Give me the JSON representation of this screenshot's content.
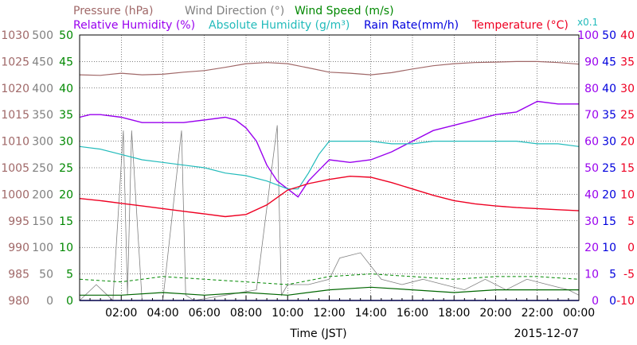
{
  "colors": {
    "pressure": "#a06868",
    "wind_direction": "#808080",
    "wind_speed": "#008800",
    "wind_speed_line": "#006600",
    "humidity": "#9900ee",
    "abs_humidity": "#22bbbb",
    "rain": "#0000dd",
    "temperature": "#ee0022",
    "temperature_dew": "#bb2244",
    "grid": "#000000"
  },
  "legend": {
    "row1": [
      {
        "key": "pressure",
        "text": "Pressure (hPa)"
      },
      {
        "key": "wind_direction",
        "text": "Wind Direction (°)"
      },
      {
        "key": "wind_speed",
        "text": "Wind Speed (m/s)"
      }
    ],
    "row2": [
      {
        "key": "humidity",
        "text": "Relative Humidity (%)"
      },
      {
        "key": "abs_humidity",
        "text": "Absolute Humidity (g/m³)"
      },
      {
        "key": "rain",
        "text": "Rain Rate(mm/h)"
      },
      {
        "key": "temperature",
        "text": "Temperature (°C)"
      }
    ],
    "multiplier": "x0.1"
  },
  "chart_data": {
    "type": "line",
    "xlabel": "Time (JST)",
    "date": "2015-12-07",
    "x_ticks": [
      "02:00",
      "04:00",
      "06:00",
      "08:00",
      "10:00",
      "12:00",
      "14:00",
      "16:00",
      "18:00",
      "20:00",
      "22:00",
      "00:00"
    ],
    "xlim_hours": [
      0,
      24
    ],
    "grid": true,
    "axes": {
      "pressure": {
        "ticks": [
          "1030",
          "1025",
          "1020",
          "1015",
          "1010",
          "1005",
          "1000",
          "995",
          "990",
          "985",
          "980"
        ],
        "range": [
          980,
          1030
        ]
      },
      "wind_direction": {
        "ticks": [
          "500",
          "450",
          "400",
          "350",
          "300",
          "250",
          "200",
          "150",
          "100",
          "50",
          "0"
        ],
        "range": [
          0,
          500
        ]
      },
      "wind_speed": {
        "ticks": [
          "50",
          "45",
          "40",
          "35",
          "30",
          "25",
          "20",
          "15",
          "10",
          "5",
          "0"
        ],
        "range": [
          0,
          50
        ]
      },
      "humidity": {
        "ticks": [
          "100",
          "90",
          "80",
          "70",
          "60",
          "50",
          "40",
          "30",
          "20",
          "10",
          "0"
        ],
        "range": [
          0,
          100
        ]
      },
      "rain": {
        "ticks": [
          "50",
          "45",
          "40",
          "35",
          "30",
          "25",
          "20",
          "15",
          "10",
          "5",
          "0"
        ],
        "range": [
          0,
          50
        ]
      },
      "temperature": {
        "ticks": [
          "40",
          "35",
          "30",
          "25",
          "20",
          "15",
          "10",
          "5",
          "0",
          "-5",
          "-10"
        ],
        "range": [
          -10,
          40
        ]
      }
    },
    "series": [
      {
        "key": "pressure",
        "unit_axis": "pressure",
        "x": [
          0,
          1,
          2,
          3,
          4,
          5,
          6,
          7,
          8,
          9,
          10,
          11,
          12,
          13,
          14,
          15,
          16,
          17,
          18,
          19,
          20,
          21,
          22,
          23,
          24
        ],
        "y": [
          1022.5,
          1022.4,
          1022.8,
          1022.5,
          1022.6,
          1023.0,
          1023.3,
          1023.9,
          1024.6,
          1024.8,
          1024.6,
          1023.8,
          1023.0,
          1022.8,
          1022.5,
          1022.9,
          1023.6,
          1024.2,
          1024.6,
          1024.8,
          1024.9,
          1025.0,
          1025.0,
          1024.8,
          1024.5
        ]
      },
      {
        "key": "wind_direction",
        "unit_axis": "wind_direction",
        "x": [
          0,
          0.8,
          1.6,
          2.1,
          2.3,
          2.5,
          3.0,
          4.0,
          4.9,
          5.1,
          5.5,
          7.0,
          8.5,
          9.5,
          9.7,
          10.0,
          11.0,
          12.0,
          12.5,
          13.5,
          14.5,
          15.5,
          16.5,
          17.5,
          18.5,
          19.5,
          20.5,
          21.5,
          22.5,
          23.5,
          24
        ],
        "y": [
          0,
          30,
          0,
          320,
          10,
          320,
          0,
          0,
          320,
          10,
          0,
          10,
          20,
          330,
          10,
          30,
          30,
          40,
          80,
          90,
          40,
          30,
          40,
          30,
          20,
          40,
          20,
          40,
          30,
          20,
          10
        ]
      },
      {
        "key": "wind_speed",
        "unit_axis": "wind_speed",
        "x": [
          0,
          2,
          4,
          6,
          8,
          10,
          12,
          14,
          16,
          18,
          20,
          22,
          24
        ],
        "y": [
          1.0,
          1.0,
          1.5,
          1.0,
          1.5,
          1.0,
          2.0,
          2.5,
          2.0,
          1.5,
          2.0,
          2.0,
          2.0
        ]
      },
      {
        "key": "wind_speed_gust",
        "unit_axis": "wind_speed",
        "x": [
          0,
          2,
          4,
          6,
          8,
          10,
          12,
          14,
          16,
          18,
          20,
          22,
          24
        ],
        "y": [
          4.0,
          3.5,
          4.5,
          4.0,
          3.5,
          3.0,
          4.5,
          5.0,
          4.5,
          4.0,
          4.5,
          4.5,
          4.0
        ]
      },
      {
        "key": "humidity",
        "unit_axis": "humidity",
        "x": [
          0,
          0.5,
          1,
          2,
          3,
          4,
          5,
          6,
          7,
          7.5,
          8,
          8.5,
          9,
          9.5,
          10,
          10.5,
          11,
          11.5,
          12,
          13,
          14,
          15,
          16,
          17,
          18,
          19,
          20,
          21,
          22,
          23,
          24
        ],
        "y": [
          69,
          70,
          70,
          69,
          67,
          67,
          67,
          68,
          69,
          68,
          65,
          60,
          51,
          45,
          42,
          39,
          45,
          49,
          53,
          52,
          53,
          56,
          60,
          64,
          66,
          68,
          70,
          71,
          75,
          74,
          74
        ]
      },
      {
        "key": "abs_humidity",
        "unit_axis": "rain",
        "x": [
          0,
          1,
          2,
          3,
          4,
          5,
          6,
          7,
          8,
          9,
          10,
          10.5,
          11,
          11.5,
          12,
          13,
          14,
          15,
          16,
          17,
          18,
          19,
          20,
          21,
          22,
          23,
          24
        ],
        "y": [
          29.0,
          28.5,
          27.5,
          26.5,
          26.0,
          25.5,
          25.0,
          24.0,
          23.5,
          22.5,
          21.0,
          21.0,
          24.0,
          27.5,
          30.0,
          30.0,
          30.0,
          29.5,
          29.5,
          30.0,
          30.0,
          30.0,
          30.0,
          30.0,
          29.5,
          29.5,
          29.0
        ]
      },
      {
        "key": "rain",
        "unit_axis": "rain",
        "x": [
          0,
          24
        ],
        "y": [
          0,
          0
        ]
      },
      {
        "key": "temperature",
        "unit_axis": "temperature",
        "x": [
          0,
          1,
          2,
          3,
          4,
          5,
          6,
          7,
          8,
          9,
          10,
          11,
          12,
          13,
          14,
          15,
          16,
          17,
          18,
          19,
          20,
          21,
          22,
          23,
          24
        ],
        "y": [
          9.2,
          8.8,
          8.3,
          7.8,
          7.3,
          6.8,
          6.3,
          5.8,
          6.2,
          8.0,
          10.8,
          12.0,
          12.8,
          13.4,
          13.2,
          12.2,
          11.0,
          9.8,
          8.8,
          8.2,
          7.8,
          7.5,
          7.3,
          7.1,
          6.9
        ]
      }
    ]
  }
}
